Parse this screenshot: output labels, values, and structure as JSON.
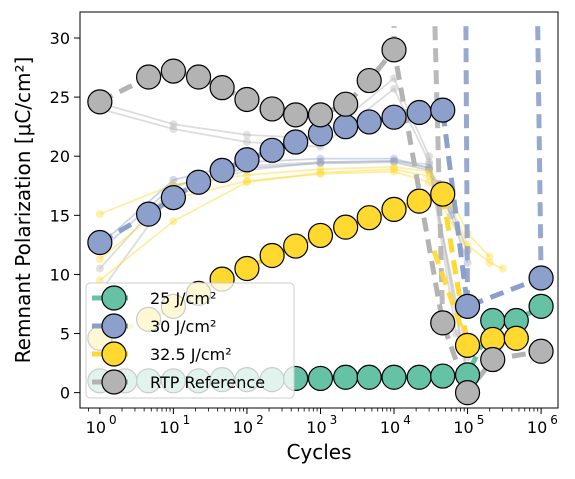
{
  "chart_data": {
    "type": "line",
    "xlabel": "Cycles",
    "ylabel": "Remnant Polarization [μC/cm²]",
    "xscale": "log",
    "xlim": [
      1,
      1000000
    ],
    "ylim": [
      0,
      31
    ],
    "x_ticks": [
      {
        "value": 1,
        "base": "10",
        "exp": "0"
      },
      {
        "value": 10,
        "base": "10",
        "exp": "1"
      },
      {
        "value": 100,
        "base": "10",
        "exp": "2"
      },
      {
        "value": 1000,
        "base": "10",
        "exp": "3"
      },
      {
        "value": 10000,
        "base": "10",
        "exp": "4"
      },
      {
        "value": 100000,
        "base": "10",
        "exp": "5"
      },
      {
        "value": 1000000,
        "base": "10",
        "exp": "6"
      }
    ],
    "y_ticks": [
      0,
      5,
      10,
      15,
      20,
      25,
      30
    ],
    "grid": false,
    "legend_position": "bottom-left",
    "series": [
      {
        "name": "25 J/cm²",
        "color": "#66c2a5",
        "x": [
          1,
          2.2,
          4.6,
          10,
          22,
          46,
          100,
          220,
          460,
          1000,
          2200,
          4600,
          10000,
          22000,
          46000,
          100000,
          220000,
          460000,
          1000000
        ],
        "y": [
          1.0,
          1.0,
          1.0,
          1.0,
          1.0,
          1.1,
          1.1,
          1.1,
          1.2,
          1.2,
          1.3,
          1.3,
          1.3,
          1.3,
          1.4,
          1.5,
          6.1,
          6.1,
          7.3
        ]
      },
      {
        "name": "30 J/cm²",
        "color": "#8da0cb",
        "x": [
          1,
          4.6,
          10,
          22,
          46,
          100,
          220,
          460,
          1000,
          2200,
          4600,
          10000,
          22000,
          46000,
          100000,
          1000000
        ],
        "y": [
          12.7,
          15.1,
          16.5,
          17.8,
          18.8,
          19.7,
          20.5,
          21.2,
          21.9,
          22.5,
          22.9,
          23.3,
          23.7,
          23.9,
          7.3,
          9.7
        ]
      },
      {
        "name": "32.5 J/cm²",
        "color": "#ffd92f",
        "x": [
          1,
          4.6,
          10,
          22,
          46,
          100,
          220,
          460,
          1000,
          2200,
          4600,
          10000,
          22000,
          46000,
          100000,
          220000,
          460000
        ],
        "y": [
          4.6,
          6.2,
          7.3,
          8.4,
          9.6,
          10.5,
          11.6,
          12.4,
          13.3,
          14.0,
          14.8,
          15.5,
          16.2,
          16.8,
          4.0,
          4.5,
          4.6
        ]
      },
      {
        "name": "RTP Reference",
        "color": "#b3b3b3",
        "x": [
          1,
          4.6,
          10,
          22,
          46,
          100,
          220,
          460,
          1000,
          2200,
          4600,
          10000,
          46000,
          100000,
          220000,
          1000000
        ],
        "y": [
          24.6,
          26.7,
          27.2,
          26.7,
          25.8,
          24.8,
          24.0,
          23.5,
          23.5,
          24.4,
          26.4,
          29.0,
          5.9,
          0.0,
          2.8,
          3.5
        ]
      }
    ],
    "background_runs": [
      {
        "color": "#b3b3b3",
        "x": [
          1,
          10,
          100,
          1000,
          10000,
          30000,
          100000
        ],
        "y": [
          24.5,
          22.7,
          21.8,
          21.5,
          26.6,
          20.0,
          1.5
        ]
      },
      {
        "color": "#b3b3b3",
        "x": [
          1,
          10,
          100,
          1000,
          10000,
          30000,
          100000
        ],
        "y": [
          24.0,
          22.3,
          21.2,
          20.8,
          25.7,
          19.5,
          1.0
        ]
      },
      {
        "color": "#b3b3b3",
        "x": [
          1,
          10,
          100,
          1000,
          10000,
          30000,
          70000,
          100000
        ],
        "y": [
          8.5,
          17.0,
          18.8,
          19.5,
          19.6,
          19.3,
          5.0,
          3.5
        ]
      },
      {
        "color": "#b3b3b3",
        "x": [
          1,
          10,
          100,
          1000,
          10000,
          30000,
          100000
        ],
        "y": [
          10.5,
          17.4,
          19.2,
          19.5,
          19.6,
          19.0,
          3.0
        ]
      },
      {
        "color": "#8da0cb",
        "x": [
          1,
          10,
          100,
          1000,
          10000,
          30000,
          60000,
          100000
        ],
        "y": [
          12.5,
          18.0,
          19.5,
          19.8,
          19.8,
          19.0,
          15.5,
          12.0
        ]
      },
      {
        "color": "#8da0cb",
        "x": [
          1,
          10,
          100,
          1000,
          10000,
          30000,
          60000,
          100000
        ],
        "y": [
          12.0,
          17.5,
          19.0,
          19.4,
          19.5,
          18.8,
          15.0,
          11.0
        ]
      },
      {
        "color": "#ffd92f",
        "x": [
          1,
          10,
          100,
          1000,
          10000,
          30000,
          60000,
          100000,
          200000,
          300000
        ],
        "y": [
          9.5,
          14.5,
          17.8,
          18.6,
          18.9,
          18.3,
          15.8,
          12.5,
          11.0,
          10.5
        ]
      },
      {
        "color": "#ffd92f",
        "x": [
          1,
          10,
          100,
          1000,
          10000,
          30000,
          60000,
          100000,
          200000
        ],
        "y": [
          15.1,
          17.6,
          18.4,
          18.9,
          19.1,
          18.7,
          16.5,
          13.5,
          11.5
        ]
      },
      {
        "color": "#ffd92f",
        "x": [
          1,
          10,
          100,
          1000,
          10000,
          30000,
          100000
        ],
        "y": [
          11.3,
          16.4,
          17.9,
          18.5,
          18.7,
          17.8,
          12.0
        ]
      }
    ],
    "vertical_dashes": [
      {
        "color": "#b3b3b3",
        "x1": 10000,
        "y1": 29.0,
        "x2": 10000,
        "y2": 31
      },
      {
        "color": "#b3b3b3",
        "x1": 36000,
        "y1": 31,
        "x2": 46000,
        "y2": 5.9
      },
      {
        "color": "#8da0cb",
        "x1": 95000,
        "y1": 31,
        "x2": 100000,
        "y2": 7.3
      },
      {
        "color": "#8da0cb",
        "x1": 900000,
        "y1": 31,
        "x2": 1000000,
        "y2": 9.7
      },
      {
        "color": "#ffd92f",
        "x1": 35000,
        "y1": 12.0,
        "x2": 100000,
        "y2": 4.0
      }
    ]
  }
}
